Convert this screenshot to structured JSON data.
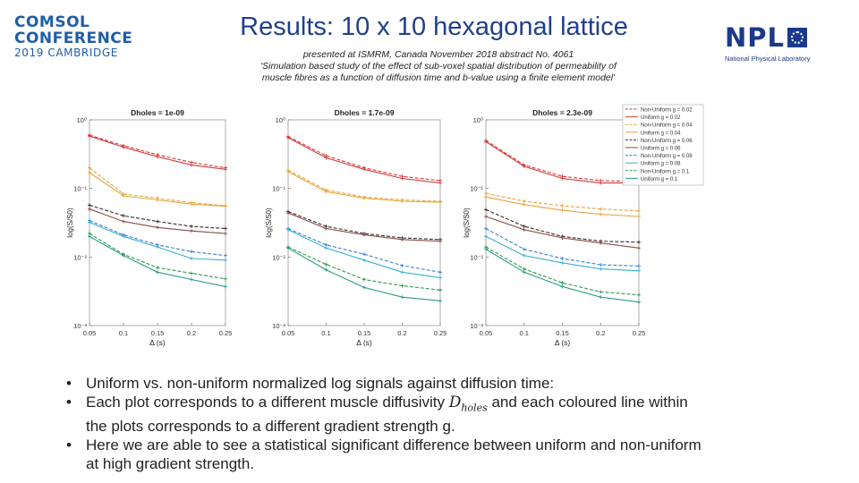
{
  "header": {
    "comsol_logo_line1": "COMSOL",
    "comsol_logo_line2": "CONFERENCE",
    "comsol_logo_line3": "2019 CAMBRIDGE",
    "title": "Results: 10 x 10 hexagonal lattice",
    "subtitle_line1": "presented at ISMRM, Canada November 2018 abstract No. 4061",
    "subtitle_line2": "'Simulation based study of the effect of sub-voxel spatial distribution of permeability of",
    "subtitle_line3": "muscle fibres as a function of diffusion time and b-value using a finite element model'",
    "npl_logo_text": "NPL",
    "npl_logo_name": "National Physical Laboratory"
  },
  "chart_data": [
    {
      "type": "line",
      "title": "Dholes = 1e-09",
      "xlabel": "Δ (s)",
      "ylabel": "log(S/S0)",
      "yscale": "log",
      "xlim": [
        0.05,
        0.25
      ],
      "ylim": [
        0.001,
        1
      ],
      "x": [
        0.05,
        0.1,
        0.15,
        0.2,
        0.25
      ],
      "x_tick_labels": [
        "0.05",
        "0.1",
        "0.15",
        "0.2",
        "0.25"
      ],
      "y_tick_labels": [
        "10⁰",
        "10⁻¹",
        "10⁻²",
        "10⁻³"
      ],
      "series": [
        {
          "name": "Non-Uniform g = 0.02",
          "color": "#d63a3a",
          "dashed": true,
          "values": [
            0.6,
            0.42,
            0.31,
            0.24,
            0.2
          ]
        },
        {
          "name": "Uniform g = 0.02",
          "color": "#d63a3a",
          "dashed": false,
          "values": [
            0.58,
            0.4,
            0.29,
            0.22,
            0.19
          ]
        },
        {
          "name": "Non-Uniform g = 0.04",
          "color": "#e8a53a",
          "dashed": true,
          "values": [
            0.2,
            0.083,
            0.072,
            0.062,
            0.056
          ]
        },
        {
          "name": "Uniform g = 0.04",
          "color": "#e8a53a",
          "dashed": false,
          "values": [
            0.17,
            0.078,
            0.068,
            0.059,
            0.055
          ]
        },
        {
          "name": "Non-Uniform g = 0.06",
          "color": "#3a2a2a",
          "dashed": true,
          "values": [
            0.057,
            0.04,
            0.033,
            0.028,
            0.026
          ]
        },
        {
          "name": "Uniform g = 0.06",
          "color": "#8a4a4a",
          "dashed": false,
          "values": [
            0.05,
            0.033,
            0.027,
            0.024,
            0.022
          ]
        },
        {
          "name": "Non-Uniform g = 0.08",
          "color": "#3a7fd6",
          "dashed": true,
          "values": [
            0.034,
            0.021,
            0.015,
            0.012,
            0.0105
          ]
        },
        {
          "name": "Uniform g = 0.08",
          "color": "#3ab0d0",
          "dashed": false,
          "values": [
            0.032,
            0.02,
            0.014,
            0.0095,
            0.009
          ]
        },
        {
          "name": "Non-Uniform g = 0.1",
          "color": "#2f9a4a",
          "dashed": true,
          "values": [
            0.022,
            0.011,
            0.007,
            0.0058,
            0.0048
          ]
        },
        {
          "name": "Uniform g = 0.1",
          "color": "#2a9a88",
          "dashed": false,
          "values": [
            0.02,
            0.0105,
            0.006,
            0.0047,
            0.0037
          ]
        }
      ]
    },
    {
      "type": "line",
      "title": "Dholes = 1.7e-09",
      "xlabel": "Δ (s)",
      "ylabel": "log(S/S0)",
      "yscale": "log",
      "xlim": [
        0.05,
        0.25
      ],
      "ylim": [
        0.001,
        1
      ],
      "x": [
        0.05,
        0.1,
        0.15,
        0.2,
        0.25
      ],
      "x_tick_labels": [
        "0.05",
        "0.1",
        "0.15",
        "0.2",
        "0.25"
      ],
      "y_tick_labels": [
        "10⁰",
        "10⁻¹",
        "10⁻²",
        "10⁻³"
      ],
      "series": [
        {
          "name": "Non-Uniform g = 0.02",
          "color": "#d63a3a",
          "dashed": true,
          "values": [
            0.57,
            0.3,
            0.2,
            0.15,
            0.13
          ]
        },
        {
          "name": "Uniform g = 0.02",
          "color": "#d63a3a",
          "dashed": false,
          "values": [
            0.55,
            0.28,
            0.19,
            0.14,
            0.12
          ]
        },
        {
          "name": "Non-Uniform g = 0.04",
          "color": "#e8a53a",
          "dashed": true,
          "values": [
            0.185,
            0.095,
            0.075,
            0.068,
            0.065
          ]
        },
        {
          "name": "Uniform g = 0.04",
          "color": "#e8a53a",
          "dashed": false,
          "values": [
            0.175,
            0.09,
            0.072,
            0.065,
            0.063
          ]
        },
        {
          "name": "Non-Uniform g = 0.06",
          "color": "#3a2a2a",
          "dashed": true,
          "values": [
            0.046,
            0.028,
            0.022,
            0.019,
            0.018
          ]
        },
        {
          "name": "Uniform g = 0.06",
          "color": "#8a4a4a",
          "dashed": false,
          "values": [
            0.044,
            0.026,
            0.021,
            0.018,
            0.017
          ]
        },
        {
          "name": "Non-Uniform g = 0.08",
          "color": "#3a7fd6",
          "dashed": true,
          "values": [
            0.026,
            0.015,
            0.011,
            0.0075,
            0.006
          ]
        },
        {
          "name": "Uniform g = 0.08",
          "color": "#3ab0d0",
          "dashed": false,
          "values": [
            0.025,
            0.0135,
            0.009,
            0.006,
            0.005
          ]
        },
        {
          "name": "Non-Uniform g = 0.1",
          "color": "#2f9a4a",
          "dashed": true,
          "values": [
            0.014,
            0.0078,
            0.0047,
            0.0038,
            0.0033
          ]
        },
        {
          "name": "Uniform g = 0.1",
          "color": "#2a9a88",
          "dashed": false,
          "values": [
            0.0135,
            0.0065,
            0.0036,
            0.0026,
            0.0023
          ]
        }
      ]
    },
    {
      "type": "line",
      "title": "Dholes = 2.3e-09",
      "xlabel": "Δ (s)",
      "ylabel": "log(S/S0)",
      "yscale": "log",
      "xlim": [
        0.05,
        0.25
      ],
      "ylim": [
        0.001,
        1
      ],
      "x": [
        0.05,
        0.1,
        0.15,
        0.2,
        0.25
      ],
      "x_tick_labels": [
        "0.05",
        "0.1",
        "0.15",
        "0.2",
        "0.25"
      ],
      "y_tick_labels": [
        "10⁰",
        "10⁻¹",
        "10⁻²",
        "10⁻³"
      ],
      "legend_position": "top-right",
      "series": [
        {
          "name": "Non-Uniform g = 0.02",
          "color": "#d63a3a",
          "dashed": true,
          "values": [
            0.5,
            0.22,
            0.15,
            0.13,
            0.125
          ]
        },
        {
          "name": "Uniform g = 0.02",
          "color": "#d63a3a",
          "dashed": false,
          "values": [
            0.48,
            0.21,
            0.14,
            0.12,
            0.12
          ]
        },
        {
          "name": "Non-Uniform g = 0.04",
          "color": "#e8a53a",
          "dashed": true,
          "values": [
            0.085,
            0.065,
            0.056,
            0.05,
            0.047
          ]
        },
        {
          "name": "Uniform g = 0.04",
          "color": "#e8a53a",
          "dashed": false,
          "values": [
            0.075,
            0.058,
            0.048,
            0.042,
            0.039
          ]
        },
        {
          "name": "Non-Uniform g = 0.06",
          "color": "#3a2a2a",
          "dashed": true,
          "values": [
            0.049,
            0.028,
            0.02,
            0.017,
            0.0165
          ]
        },
        {
          "name": "Uniform g = 0.06",
          "color": "#8a4a4a",
          "dashed": false,
          "values": [
            0.039,
            0.025,
            0.019,
            0.016,
            0.0135
          ]
        },
        {
          "name": "Non-Uniform g = 0.08",
          "color": "#3a7fd6",
          "dashed": true,
          "values": [
            0.026,
            0.013,
            0.0095,
            0.0077,
            0.0074
          ]
        },
        {
          "name": "Uniform g = 0.08",
          "color": "#3ab0d0",
          "dashed": false,
          "values": [
            0.02,
            0.0105,
            0.0082,
            0.0067,
            0.0063
          ]
        },
        {
          "name": "Non-Uniform g = 0.1",
          "color": "#2f9a4a",
          "dashed": true,
          "values": [
            0.014,
            0.0067,
            0.0042,
            0.0031,
            0.0028
          ]
        },
        {
          "name": "Uniform g = 0.1",
          "color": "#2a9a88",
          "dashed": false,
          "values": [
            0.013,
            0.006,
            0.0037,
            0.0026,
            0.0022
          ]
        }
      ]
    }
  ],
  "bullets": {
    "b1": "Uniform vs. non-uniform normalized log signals against diffusion time:",
    "b2_pre": "Each plot corresponds to a different muscle diffusivity ",
    "b2_sym": "D",
    "b2_sub": "holes",
    "b2_post": "  and each coloured line within the plots corresponds to a different gradient strength g.",
    "b3": "Here we are able to see a statistical significant difference  between uniform and non-uniform at high gradient strength."
  }
}
